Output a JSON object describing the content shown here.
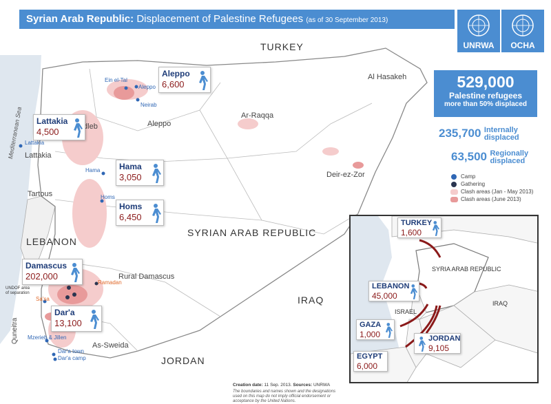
{
  "header": {
    "title_country": "Syrian Arab Republic:",
    "title_main": "Displacement of Palestine Refugees",
    "title_date": "(as of 30 September 2013)",
    "logo_unrwa": "UNRWA",
    "logo_ocha": "OCHA"
  },
  "map": {
    "countries": [
      "TURKEY",
      "SYRIAN ARAB REPUBLIC",
      "IRAQ",
      "JORDAN",
      "LEBANON"
    ],
    "sea": "Mediterranean Sea",
    "governorates": [
      "Al Hasakeh",
      "Ar-Raqqa",
      "Aleppo",
      "Idleb",
      "Lattakia",
      "Tartous",
      "Deir-ez-Zor",
      "Rural Damascus",
      "As-Sweida",
      "Quneitra"
    ],
    "camps": [
      "Ein el-Tal",
      "Aleppo",
      "Neirab",
      "Lattakia",
      "Hama",
      "Homs",
      "Ramadan",
      "Sa'sa",
      "Mzerieb & Jillen",
      "Dar'a town",
      "Dar'a camp"
    ],
    "undof": "UNDOF area of separation"
  },
  "callouts": [
    {
      "name": "Aleppo",
      "value": "6,600"
    },
    {
      "name": "Lattakia",
      "value": "4,500"
    },
    {
      "name": "Hama",
      "value": "3,050"
    },
    {
      "name": "Homs",
      "value": "6,450"
    },
    {
      "name": "Damascus",
      "value": "202,000"
    },
    {
      "name": "Dar'a",
      "value": "13,100"
    }
  ],
  "stats": {
    "total": "529,000",
    "total_label": "Palestine refugees",
    "total_sub": "more than 50% displaced",
    "internal_value": "235,700",
    "internal_label_1": "Internally",
    "internal_label_2": "displaced",
    "regional_value": "63,500",
    "regional_label_1": "Regionally",
    "regional_label_2": "displaced"
  },
  "legend": [
    {
      "label": "Camp",
      "color": "#2f67b5"
    },
    {
      "label": "Gathering",
      "color": "#2a3550"
    },
    {
      "label": "Clash areas (Jan - May 2013)",
      "color": "#f5cccc"
    },
    {
      "label": "Clash areas (June 2013)",
      "color": "#e89a9a"
    }
  ],
  "inset": {
    "labels": [
      "SYRIA ARAB REPUBLIC",
      "ISRAEL",
      "IRAQ"
    ],
    "callouts": [
      {
        "name": "TURKEY",
        "value": "1,600"
      },
      {
        "name": "LEBANON",
        "value": "45,000"
      },
      {
        "name": "GAZA",
        "value": "1,000"
      },
      {
        "name": "JORDAN",
        "value": "9,105"
      },
      {
        "name": "EGYPT",
        "value": "6,000"
      }
    ]
  },
  "footer": {
    "creation_label": "Creation date:",
    "creation_value": "11 Sep. 2013.",
    "sources_label": "Sources:",
    "sources_value": "UNRWA",
    "disclaimer": "The boundaries and names shown and the designations used on this map do not imply official endorsement or acceptance by the United Nations."
  },
  "colors": {
    "accent": "#4b8dd1",
    "value_red": "#8b1a1a",
    "clash_light": "#f5cccc",
    "clash_dark": "#e89a9a"
  }
}
